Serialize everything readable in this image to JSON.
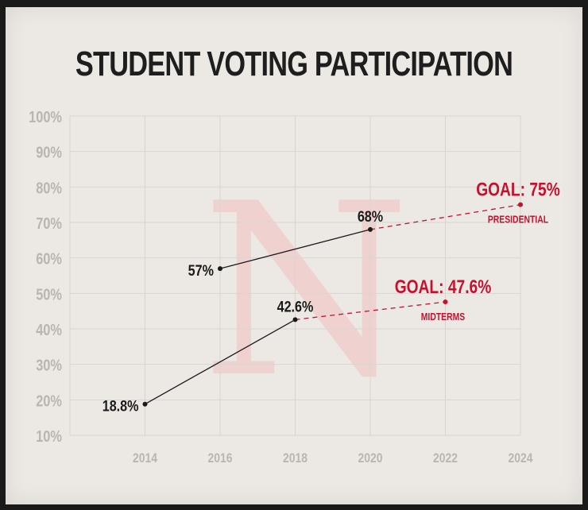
{
  "chart_data": {
    "type": "line",
    "title": "STUDENT VOTING PARTICIPATION",
    "x_ticks": [
      "2014",
      "2016",
      "2018",
      "2020",
      "2022",
      "2024"
    ],
    "y_ticks": [
      "10%",
      "20%",
      "30%",
      "40%",
      "50%",
      "60%",
      "70%",
      "80%",
      "90%",
      "100%"
    ],
    "xlim": [
      2012,
      2024
    ],
    "ylim": [
      10,
      100
    ],
    "grid": true,
    "watermark_letter": "N",
    "series": [
      {
        "points": [
          {
            "x": 2016,
            "y": 57,
            "label": "57%"
          },
          {
            "x": 2020,
            "y": 68,
            "label": "68%"
          }
        ],
        "goal": {
          "x": 2024,
          "y": 75,
          "label": "GOAL: 75%",
          "sublabel": "PRESIDENTIAL"
        }
      },
      {
        "points": [
          {
            "x": 2014,
            "y": 18.8,
            "label": "18.8%"
          },
          {
            "x": 2018,
            "y": 42.6,
            "label": "42.6%"
          }
        ],
        "goal": {
          "x": 2022,
          "y": 47.6,
          "label": "GOAL: 47.6%",
          "sublabel": "MIDTERMS"
        }
      }
    ],
    "colors": {
      "line": "#1a1a1a",
      "goal": "#c8102e",
      "grid": "#d8d5d0",
      "axis_text": "#b9b6b1",
      "watermark": "#f0c9c9"
    }
  }
}
